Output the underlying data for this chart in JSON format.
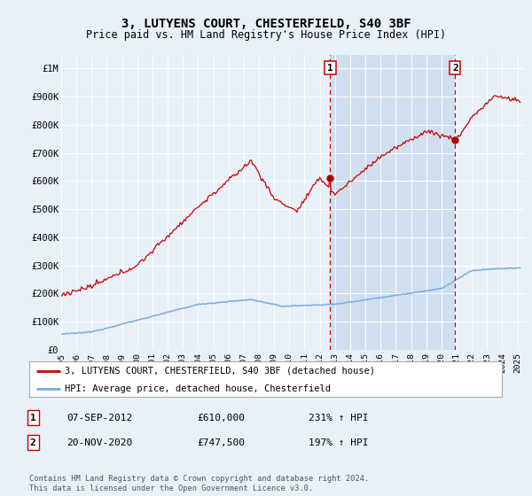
{
  "title": "3, LUTYENS COURT, CHESTERFIELD, S40 3BF",
  "subtitle": "Price paid vs. HM Land Registry's House Price Index (HPI)",
  "background_color": "#e8f0f8",
  "plot_bg_color": "#e8f0f8",
  "highlight_color": "#d0dff0",
  "grid_color": "#ffffff",
  "ylim": [
    0,
    1050000
  ],
  "xlim_start": 1995.0,
  "xlim_end": 2025.5,
  "yticks": [
    0,
    100000,
    200000,
    300000,
    400000,
    500000,
    600000,
    700000,
    800000,
    900000,
    1000000
  ],
  "ytick_labels": [
    "£0",
    "£100K",
    "£200K",
    "£300K",
    "£400K",
    "£500K",
    "£600K",
    "£700K",
    "£800K",
    "£900K",
    "£1M"
  ],
  "xticks": [
    1995,
    1996,
    1997,
    1998,
    1999,
    2000,
    2001,
    2002,
    2003,
    2004,
    2005,
    2006,
    2007,
    2008,
    2009,
    2010,
    2011,
    2012,
    2013,
    2014,
    2015,
    2016,
    2017,
    2018,
    2019,
    2020,
    2021,
    2022,
    2023,
    2024,
    2025
  ],
  "sale1_x": 2012.69,
  "sale1_y": 610000,
  "sale2_x": 2020.9,
  "sale2_y": 747500,
  "hpi_line_color": "#7aaadd",
  "property_line_color": "#cc0000",
  "dot_color": "#aa0000",
  "legend_label_property": "3, LUTYENS COURT, CHESTERFIELD, S40 3BF (detached house)",
  "legend_label_hpi": "HPI: Average price, detached house, Chesterfield",
  "table_rows": [
    {
      "num": "1",
      "date": "07-SEP-2012",
      "price": "£610,000",
      "hpi": "231% ↑ HPI"
    },
    {
      "num": "2",
      "date": "20-NOV-2020",
      "price": "£747,500",
      "hpi": "197% ↑ HPI"
    }
  ],
  "footer": "Contains HM Land Registry data © Crown copyright and database right 2024.\nThis data is licensed under the Open Government Licence v3.0."
}
